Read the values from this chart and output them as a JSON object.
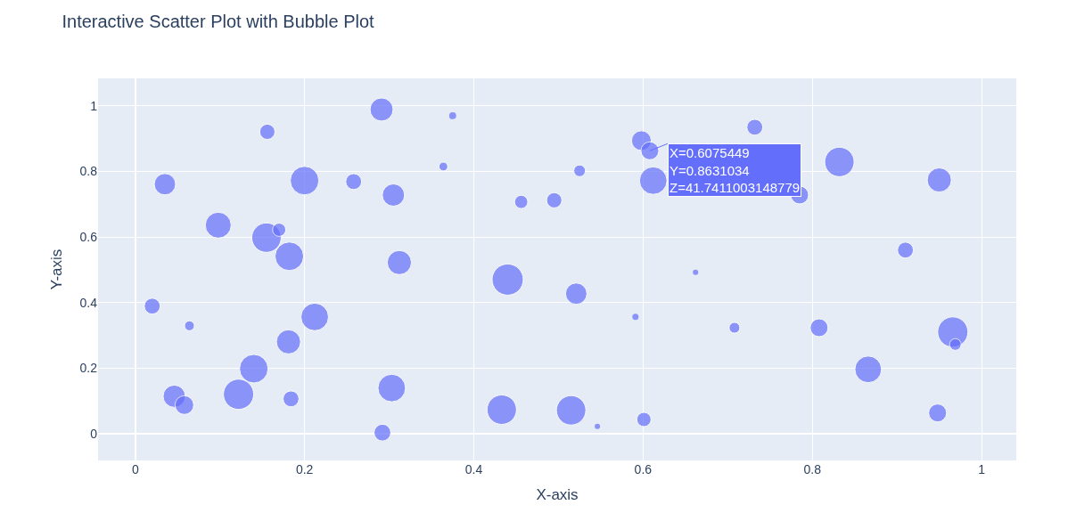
{
  "chart_data": {
    "type": "bubble",
    "title": "Interactive Scatter Plot with Bubble Plot",
    "xlabel": "X-axis",
    "ylabel": "Y-axis",
    "x": [
      0.291,
      0.375,
      0.156,
      0.364,
      0.035,
      0.2,
      0.258,
      0.305,
      0.456,
      0.495,
      0.525,
      0.598,
      0.608,
      0.612,
      0.732,
      0.832,
      0.785,
      0.95,
      0.098,
      0.155,
      0.17,
      0.182,
      0.312,
      0.44,
      0.521,
      0.662,
      0.91,
      0.02,
      0.064,
      0.212,
      0.181,
      0.14,
      0.046,
      0.058,
      0.122,
      0.184,
      0.303,
      0.292,
      0.433,
      0.515,
      0.546,
      0.601,
      0.591,
      0.708,
      0.808,
      0.866,
      0.966,
      0.969,
      0.948
    ],
    "values": [
      0.989,
      0.97,
      0.921,
      0.815,
      0.761,
      0.772,
      0.769,
      0.728,
      0.707,
      0.712,
      0.802,
      0.894,
      0.863,
      0.772,
      0.935,
      0.829,
      0.728,
      0.774,
      0.636,
      0.598,
      0.622,
      0.541,
      0.522,
      0.47,
      0.427,
      0.492,
      0.56,
      0.389,
      0.329,
      0.356,
      0.28,
      0.198,
      0.114,
      0.087,
      0.12,
      0.106,
      0.139,
      0.003,
      0.073,
      0.071,
      0.022,
      0.043,
      0.356,
      0.323,
      0.323,
      0.196,
      0.31,
      0.272,
      0.063
    ],
    "sizes": [
      0.55,
      0.05,
      0.24,
      0.08,
      0.47,
      0.84,
      0.26,
      0.51,
      0.18,
      0.24,
      0.14,
      0.4,
      0.33,
      0.78,
      0.26,
      0.89,
      0.33,
      0.6,
      0.69,
      0.89,
      0.18,
      0.84,
      0.6,
      1.0,
      0.47,
      0.03,
      0.26,
      0.26,
      0.1,
      0.78,
      0.6,
      0.84,
      0.51,
      0.36,
      0.94,
      0.26,
      0.78,
      0.29,
      0.89,
      0.89,
      0.03,
      0.21,
      0.04,
      0.12,
      0.33,
      0.73,
      0.94,
      0.14,
      0.33
    ],
    "color": "#636efa",
    "marker": "circle",
    "xlim": [
      -0.044,
      1.041
    ],
    "ylim": [
      -0.082,
      1.084
    ],
    "xticks": [
      0,
      0.2,
      0.4,
      0.6,
      0.8,
      1
    ],
    "yticks": [
      0,
      0.2,
      0.4,
      0.6,
      0.8,
      1
    ],
    "grid": true,
    "legend": false,
    "annotations": [
      {
        "text": "X=0.6075449\nY=0.8631034\nZ=41.7411003148779",
        "x": 0.608,
        "y": 0.863
      }
    ]
  }
}
